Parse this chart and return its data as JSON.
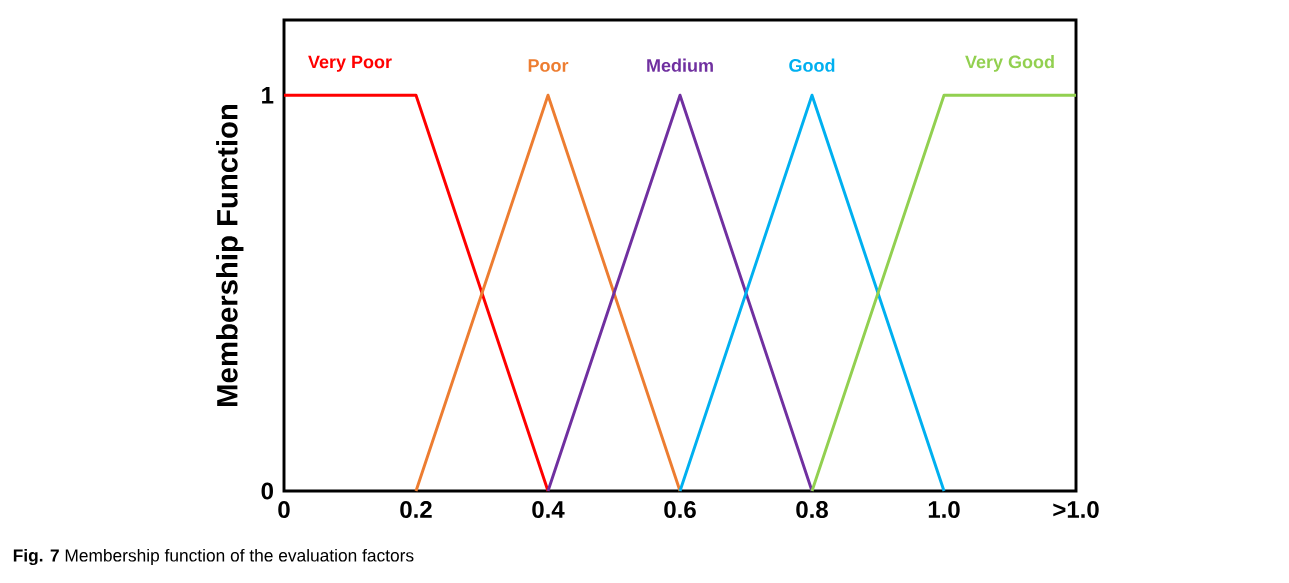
{
  "chart_data": {
    "type": "line",
    "ylabel": "Membership Function",
    "series": [
      {
        "name": "Very Poor",
        "color": "#ff0000",
        "x": [
          0,
          0.2,
          0.4
        ],
        "values": [
          1,
          1,
          0
        ]
      },
      {
        "name": "Poor",
        "color": "#ed7d31",
        "x": [
          0.2,
          0.4,
          0.6
        ],
        "values": [
          0,
          1,
          0
        ]
      },
      {
        "name": "Medium",
        "color": "#7030a0",
        "x": [
          0.4,
          0.6,
          0.8
        ],
        "values": [
          0,
          1,
          0
        ]
      },
      {
        "name": "Good",
        "color": "#00b0f0",
        "x": [
          0.6,
          0.8,
          1.0
        ],
        "values": [
          0,
          1,
          0
        ]
      },
      {
        "name": "Very Good",
        "color": "#92d050",
        "x": [
          0.8,
          1.0,
          1.2
        ],
        "values": [
          0,
          1,
          1
        ]
      }
    ],
    "xlim": [
      0,
      1.2
    ],
    "ylim": [
      0,
      1.19
    ],
    "xticks": [
      0,
      0.2,
      0.4,
      0.6,
      0.8,
      {
        "value": 1.0,
        "label": "1.0"
      },
      {
        "value": 1.2,
        "label": ">1.0"
      }
    ],
    "yticks": [
      0,
      1
    ],
    "annotations": [
      "**Fig. 7** Membership function of the evaluation factors"
    ]
  }
}
